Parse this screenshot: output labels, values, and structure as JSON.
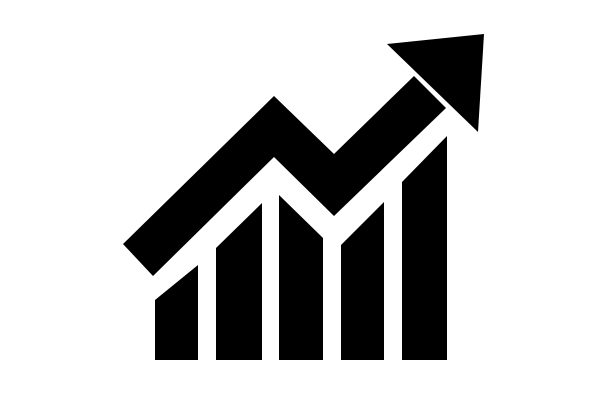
{
  "icon": {
    "name": "growth-chart-icon",
    "color": "#000000",
    "background": "#ffffff"
  }
}
